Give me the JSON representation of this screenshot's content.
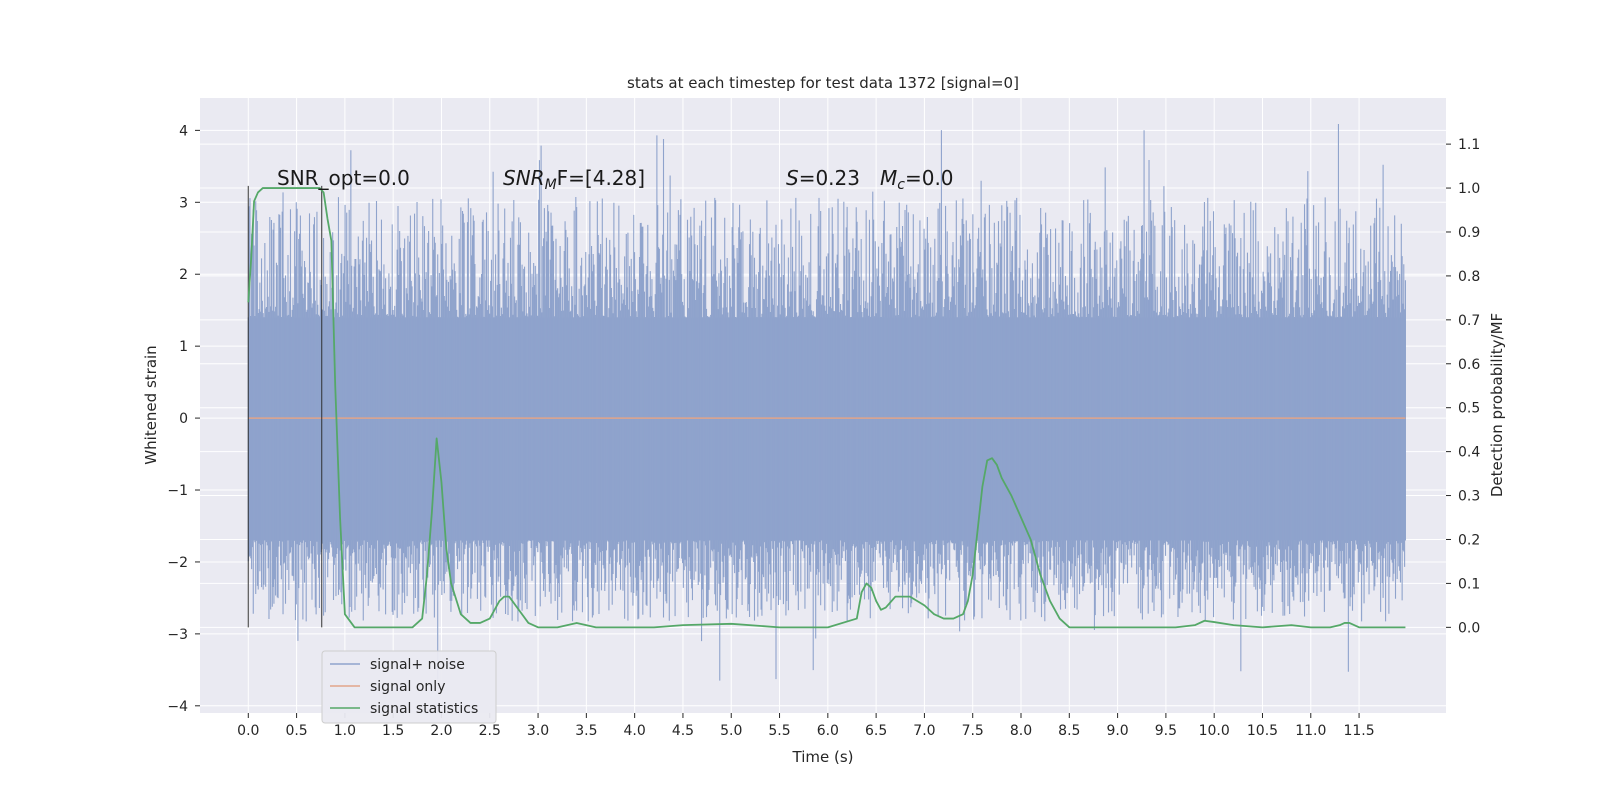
{
  "chart_data": {
    "type": "line",
    "title": "stats at each timestep for test data 1372 [signal=0]",
    "xlabel": "Time (s)",
    "ylabel_left": "Whitened strain",
    "ylabel_right": "Detection probability/MF",
    "xlim": [
      -0.5,
      12.4
    ],
    "ylim_left": [
      -4.1,
      4.45
    ],
    "ylim_right": [
      -0.195,
      1.205
    ],
    "x_ticks": [
      "0.0",
      "0.5",
      "1.0",
      "1.5",
      "2.0",
      "2.5",
      "3.0",
      "3.5",
      "4.0",
      "4.5",
      "5.0",
      "5.5",
      "6.0",
      "6.5",
      "7.0",
      "7.5",
      "8.0",
      "8.5",
      "9.0",
      "9.5",
      "10.0",
      "10.5",
      "11.0",
      "11.5"
    ],
    "y_ticks_left": [
      "4",
      "3",
      "2",
      "1",
      "0",
      "−1",
      "−2",
      "−3",
      "−4"
    ],
    "y_ticks_right": [
      "1.1",
      "1.0",
      "0.9",
      "0.8",
      "0.7",
      "0.6",
      "0.5",
      "0.4",
      "0.3",
      "0.2",
      "0.1",
      "0.0"
    ],
    "grid": true,
    "legend_position": "lower-left",
    "annotations": {
      "snr_opt": "SNR_opt=0.0",
      "snr_mf_sym": "SNR",
      "snr_mf_sub": "M",
      "snr_mf_rest": "F=[4.28]",
      "s_sym": "S",
      "s_val": "=0.23",
      "mc_sym": "M",
      "mc_sub": "c",
      "mc_val": "=0.0"
    },
    "vertical_markers": [
      0.0,
      0.76
    ],
    "series": [
      {
        "name": "signal+ noise",
        "color": "#8fa3cc",
        "axis": "left",
        "band": {
          "x_range": [
            0.0,
            11.98
          ],
          "core_low": -1.7,
          "core_high": 1.4,
          "peak_high": 4.1,
          "peak_low": -3.75
        }
      },
      {
        "name": "signal only",
        "color": "#e1a48a",
        "axis": "left",
        "x": [
          0.0,
          11.98
        ],
        "y": [
          0.0,
          0.0
        ]
      },
      {
        "name": "signal statistics",
        "color": "#55a868",
        "axis": "right",
        "x": [
          0.0,
          0.03,
          0.06,
          0.1,
          0.15,
          0.2,
          0.3,
          0.4,
          0.5,
          0.6,
          0.7,
          0.74,
          0.78,
          0.82,
          0.86,
          0.9,
          0.95,
          1.0,
          1.1,
          1.3,
          1.5,
          1.7,
          1.8,
          1.85,
          1.9,
          1.95,
          2.0,
          2.05,
          2.1,
          2.2,
          2.3,
          2.4,
          2.5,
          2.6,
          2.65,
          2.7,
          2.8,
          2.9,
          3.0,
          3.2,
          3.4,
          3.6,
          3.8,
          4.0,
          4.2,
          4.5,
          5.0,
          5.5,
          6.0,
          6.3,
          6.35,
          6.4,
          6.45,
          6.5,
          6.55,
          6.6,
          6.7,
          6.85,
          7.0,
          7.1,
          7.2,
          7.3,
          7.4,
          7.45,
          7.5,
          7.55,
          7.6,
          7.65,
          7.7,
          7.75,
          7.8,
          7.9,
          8.0,
          8.1,
          8.2,
          8.3,
          8.4,
          8.5,
          8.6,
          8.8,
          9.0,
          9.4,
          9.6,
          9.8,
          9.9,
          10.0,
          10.2,
          10.5,
          10.8,
          11.0,
          11.2,
          11.3,
          11.35,
          11.4,
          11.5,
          11.7,
          11.9,
          11.98
        ],
        "y": [
          0.74,
          0.84,
          0.97,
          0.99,
          1.0,
          1.0,
          1.0,
          1.0,
          1.0,
          1.0,
          1.0,
          1.0,
          0.99,
          0.93,
          0.88,
          0.55,
          0.25,
          0.03,
          0.0,
          0.0,
          0.0,
          0.0,
          0.02,
          0.12,
          0.26,
          0.43,
          0.33,
          0.18,
          0.1,
          0.03,
          0.01,
          0.01,
          0.02,
          0.06,
          0.07,
          0.07,
          0.04,
          0.01,
          0.0,
          0.0,
          0.01,
          0.0,
          0.0,
          0.0,
          0.0,
          0.005,
          0.008,
          0.0,
          0.0,
          0.02,
          0.08,
          0.1,
          0.09,
          0.06,
          0.04,
          0.045,
          0.07,
          0.07,
          0.05,
          0.03,
          0.02,
          0.02,
          0.03,
          0.06,
          0.12,
          0.22,
          0.32,
          0.38,
          0.385,
          0.37,
          0.34,
          0.3,
          0.25,
          0.2,
          0.12,
          0.06,
          0.02,
          0.0,
          0.0,
          0.0,
          0.0,
          0.0,
          0.0,
          0.005,
          0.015,
          0.012,
          0.005,
          0.0,
          0.005,
          0.0,
          0.0,
          0.005,
          0.01,
          0.01,
          0.0,
          0.0,
          0.0,
          0.0
        ]
      }
    ]
  }
}
